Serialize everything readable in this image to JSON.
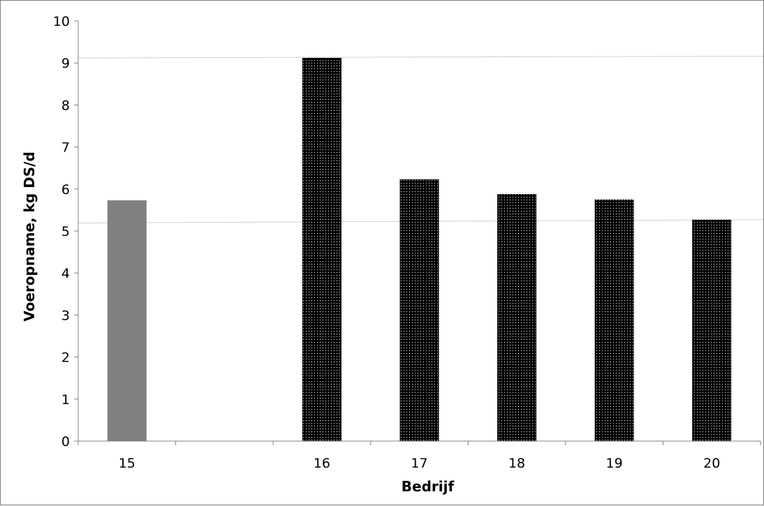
{
  "chart_data": {
    "type": "bar",
    "title": "",
    "xlabel": "Bedrijf",
    "ylabel": "Voeropname, kg DS/d",
    "ylim": [
      0,
      10
    ],
    "yticks": [
      "0",
      "1",
      "2",
      "3",
      "4",
      "5",
      "6",
      "7",
      "8",
      "9",
      "10"
    ],
    "categories": [
      "15",
      "",
      "16",
      "17",
      "18",
      "19",
      "20"
    ],
    "values": [
      5.73,
      null,
      9.12,
      6.23,
      5.88,
      5.75,
      5.27
    ],
    "bar_styles": [
      "gray",
      null,
      "dotted-black",
      "dotted-black",
      "dotted-black",
      "dotted-black",
      "dotted-black"
    ],
    "colors": {
      "gray_bar": "#808080",
      "dotted_bar": "#000000",
      "dot": "#ffffff",
      "reference_line": "#a0a0a0",
      "axis": "#808080"
    },
    "reference_lines": [
      {
        "y_start": 9.12,
        "y_end": 9.16
      },
      {
        "y_start": 5.19,
        "y_end": 5.27
      }
    ],
    "grid": false,
    "legend": "none"
  }
}
